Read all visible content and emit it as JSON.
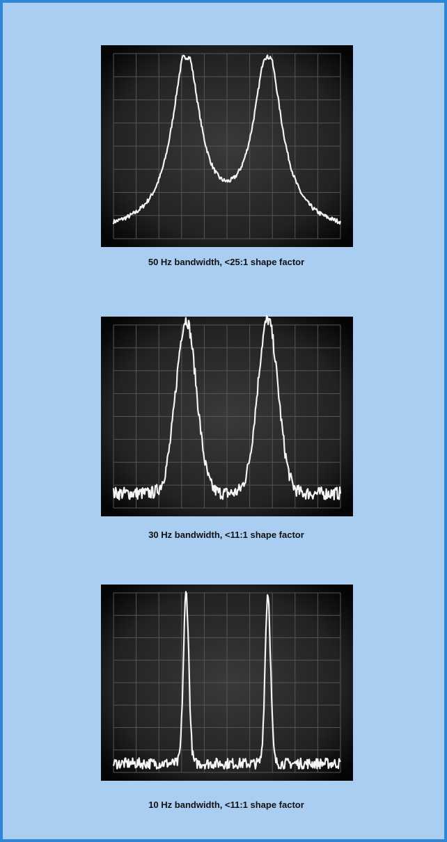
{
  "figures": [
    {
      "caption": "50 Hz bandwidth, <25:1 shape factor"
    },
    {
      "caption": "30 Hz bandwidth, <11:1 shape factor"
    },
    {
      "caption": "10 Hz bandwidth, <11:1 shape factor"
    }
  ]
}
